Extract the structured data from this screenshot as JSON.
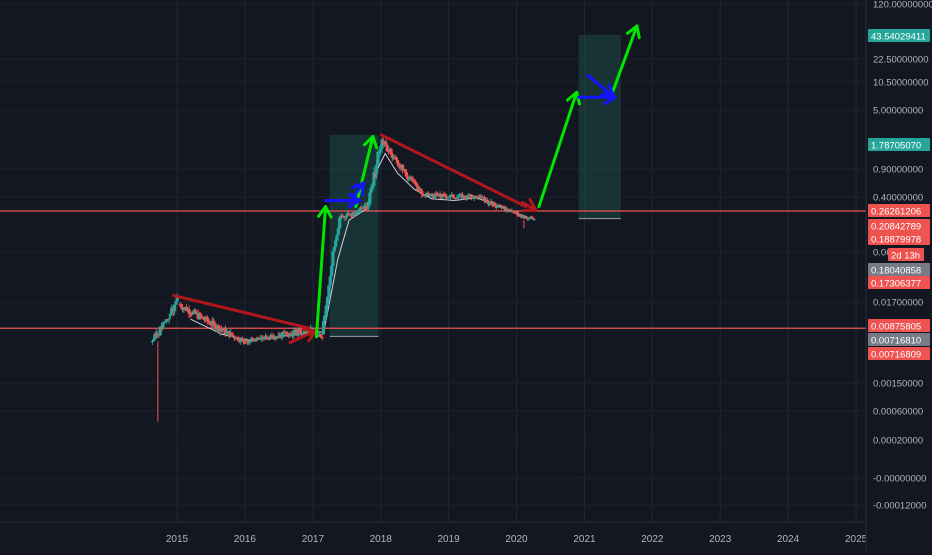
{
  "chart_data": {
    "type": "candlestick",
    "title": "",
    "xlabel": "",
    "ylabel": "",
    "x_axis_type": "time",
    "y_axis_scale": "log",
    "grid": true,
    "legend": "none",
    "x_ticks": [
      "2015",
      "2016",
      "2017",
      "2018",
      "2019",
      "2020",
      "2021",
      "2022",
      "2023",
      "2024",
      "2025"
    ],
    "y_ticks": [
      "120.00000000",
      "22.50000000",
      "10.50000000",
      "5.00000000",
      "0.90000000",
      "0.40000000",
      "0.06",
      "0.01700000",
      "0.00150000",
      "0.00060000",
      "0.00020000",
      "-0.00000000",
      "-0.00012000"
    ],
    "price_labels": [
      {
        "text": "43.54029411",
        "color": "#26a69a"
      },
      {
        "text": "1.78705070",
        "color": "#26a69a"
      },
      {
        "text": "0.26261206",
        "color": "#ef5350"
      },
      {
        "text": "0.20842789",
        "color": "#ef5350"
      },
      {
        "text": "0.18879978",
        "color": "#ef5350"
      },
      {
        "text": "2d 13h",
        "color": "#ef5350"
      },
      {
        "text": "0.18040858",
        "color": "#787b86"
      },
      {
        "text": "0.17306377",
        "color": "#ef5350"
      },
      {
        "text": "0.00875805",
        "color": "#ef5350"
      },
      {
        "text": "0.00716810",
        "color": "#787b86"
      },
      {
        "text": "0.00716809",
        "color": "#ef5350"
      }
    ],
    "horizontal_lines": [
      {
        "price": 0.26261206,
        "color": "#ef5350"
      },
      {
        "price": 0.00875805,
        "color": "#ef5350"
      }
    ],
    "candle_segments": [
      {
        "start": "2014-08-15",
        "end": "2014-11-20",
        "from": 0.006,
        "to": 0.012,
        "noise": 0.2,
        "seed": 3
      },
      {
        "start": "2014-11-20",
        "end": "2015-01-10",
        "from": 0.012,
        "to": 0.02,
        "noise": 0.22,
        "seed": 5
      },
      {
        "start": "2015-01-10",
        "end": "2016-01-01",
        "from": 0.016,
        "to": 0.006,
        "noise": 0.18,
        "seed": 7
      },
      {
        "start": "2016-01-01",
        "end": "2016-12-20",
        "from": 0.006,
        "to": 0.0085,
        "noise": 0.16,
        "seed": 11
      },
      {
        "start": "2016-12-20",
        "end": "2017-02-20",
        "from": 0.0085,
        "to": 0.0072,
        "noise": 0.15,
        "seed": 13
      },
      {
        "start": "2017-02-20",
        "end": "2017-05-25",
        "from": 0.0075,
        "to": 0.2,
        "noise": 0.22,
        "seed": 17
      },
      {
        "start": "2017-05-25",
        "end": "2017-10-20",
        "from": 0.2,
        "to": 0.3,
        "noise": 0.18,
        "seed": 19
      },
      {
        "start": "2017-10-20",
        "end": "2018-01-08",
        "from": 0.3,
        "to": 2.2,
        "noise": 0.3,
        "seed": 23
      },
      {
        "start": "2018-01-08",
        "end": "2018-08-10",
        "from": 2.0,
        "to": 0.42,
        "noise": 0.18,
        "seed": 29
      },
      {
        "start": "2018-08-10",
        "end": "2019-06-01",
        "from": 0.42,
        "to": 0.4,
        "noise": 0.14,
        "seed": 31
      },
      {
        "start": "2019-06-01",
        "end": "2020-04-05",
        "from": 0.4,
        "to": 0.19,
        "noise": 0.14,
        "seed": 37
      }
    ],
    "moving_average": [
      {
        "date": "2015-03-15",
        "price": 0.011
      },
      {
        "date": "2015-09-01",
        "price": 0.0075
      },
      {
        "date": "2016-02-01",
        "price": 0.0062
      },
      {
        "date": "2016-08-01",
        "price": 0.0072
      },
      {
        "date": "2016-12-15",
        "price": 0.0078
      },
      {
        "date": "2017-03-01",
        "price": 0.008
      },
      {
        "date": "2017-05-15",
        "price": 0.05
      },
      {
        "date": "2017-07-15",
        "price": 0.19
      },
      {
        "date": "2017-10-15",
        "price": 0.28
      },
      {
        "date": "2017-12-15",
        "price": 0.9
      },
      {
        "date": "2018-01-25",
        "price": 1.4
      },
      {
        "date": "2018-04-01",
        "price": 0.8
      },
      {
        "date": "2018-07-01",
        "price": 0.5
      },
      {
        "date": "2018-10-01",
        "price": 0.38
      },
      {
        "date": "2019-02-01",
        "price": 0.36
      },
      {
        "date": "2019-06-01",
        "price": 0.39
      },
      {
        "date": "2019-10-01",
        "price": 0.3
      },
      {
        "date": "2020-03-01",
        "price": 0.21
      }
    ],
    "drawings": {
      "trendlines": [
        {
          "from": {
            "date": "2014-12-15",
            "price": 0.02
          },
          "to": {
            "date": "2016-12-10",
            "price": 0.0088
          },
          "color": "#b2181b"
        },
        {
          "from": {
            "date": "2018-01-05",
            "price": 2.4
          },
          "to": {
            "date": "2020-02-20",
            "price": 0.3
          },
          "color": "#b2181b"
        }
      ],
      "arrows": [
        {
          "from": {
            "date": "2016-09-01",
            "price": 0.0058
          },
          "to": {
            "date": "2017-01-15",
            "price": 0.0082
          },
          "color": "#b2181b"
        },
        {
          "from": {
            "date": "2020-02-01",
            "price": 0.34
          },
          "to": {
            "date": "2020-04-15",
            "price": 0.27
          },
          "color": "#b2181b"
        },
        {
          "from": {
            "date": "2017-01-20",
            "price": 0.007
          },
          "to": {
            "date": "2017-03-10",
            "price": 0.3
          },
          "color": "#00e600"
        },
        {
          "from": {
            "date": "2017-08-20",
            "price": 0.3
          },
          "to": {
            "date": "2017-11-20",
            "price": 2.3
          },
          "color": "#00e600"
        },
        {
          "from": {
            "date": "2020-05-01",
            "price": 0.3
          },
          "to": {
            "date": "2020-11-20",
            "price": 8.0
          },
          "color": "#00e600"
        },
        {
          "from": {
            "date": "2021-06-01",
            "price": 8.0
          },
          "to": {
            "date": "2021-10-10",
            "price": 60
          },
          "color": "#00e600"
        },
        {
          "from": {
            "date": "2017-03-10",
            "price": 0.36
          },
          "to": {
            "date": "2017-09-10",
            "price": 0.36
          },
          "color": "#1414ff"
        },
        {
          "from": {
            "date": "2017-07-15",
            "price": 0.34
          },
          "to": {
            "date": "2017-10-01",
            "price": 0.6
          },
          "color": "#1414ff"
        },
        {
          "from": {
            "date": "2020-12-01",
            "price": 7.0
          },
          "to": {
            "date": "2021-06-15",
            "price": 7.0
          },
          "color": "#1414ff"
        },
        {
          "from": {
            "date": "2021-01-20",
            "price": 13.0
          },
          "to": {
            "date": "2021-06-05",
            "price": 7.2
          },
          "color": "#1414ff"
        }
      ],
      "boxes": [
        {
          "from": {
            "date": "2017-04-01",
            "price": 2.4
          },
          "to": {
            "date": "2017-12-20",
            "price": 0.0071
          }
        },
        {
          "from": {
            "date": "2020-12-01",
            "price": 45
          },
          "to": {
            "date": "2021-07-15",
            "price": 0.2
          }
        }
      ]
    }
  }
}
